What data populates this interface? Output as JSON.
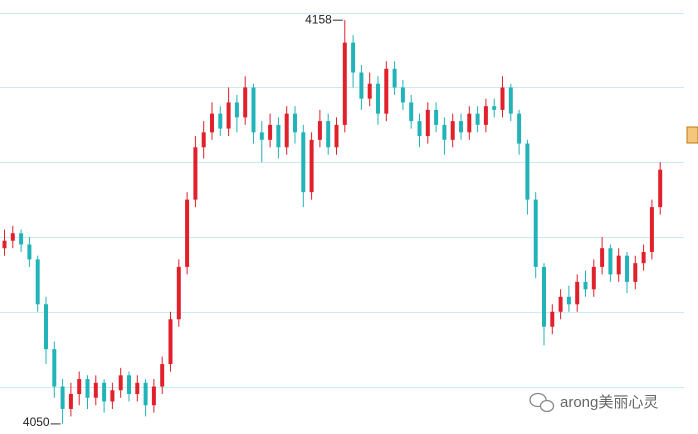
{
  "chart_data": {
    "type": "candlestick",
    "up_color": "#e0202a",
    "down_color": "#22b3b8",
    "ylim": [
      4047.3,
      4163.4
    ],
    "yticks": [
      4060,
      4080,
      4100,
      4120,
      4140,
      4160
    ],
    "grid": true,
    "open": [
      4097,
      4099,
      4101,
      4098,
      4094,
      4082,
      4070,
      4060,
      4054,
      4058,
      4062,
      4057,
      4061,
      4056,
      4059,
      4063,
      4058,
      4061,
      4055,
      4060,
      4066,
      4078,
      4092,
      4110,
      4124,
      4128,
      4133,
      4129,
      4136,
      4132,
      4140,
      4128,
      4126,
      4130,
      4124,
      4133,
      4128,
      4112,
      4126,
      4131,
      4124,
      4130,
      4152,
      4144,
      4137,
      4141,
      4133,
      4145,
      4140,
      4136,
      4131,
      4127,
      4134,
      4130,
      4126,
      4131,
      4128,
      4133,
      4130,
      4135,
      4134,
      4140,
      4133,
      4125,
      4110,
      4092,
      4076,
      4080,
      4084,
      4082,
      4088,
      4086,
      4092,
      4097,
      4090,
      4095,
      4088,
      4093,
      4096,
      4108
    ],
    "high": [
      4102,
      4103,
      4102,
      4100,
      4095,
      4084,
      4072,
      4062,
      4061,
      4064,
      4063,
      4063,
      4062,
      4061,
      4065,
      4064,
      4063,
      4062,
      4062,
      4068,
      4080,
      4094,
      4112,
      4127,
      4131,
      4136,
      4135,
      4140,
      4138,
      4143,
      4141,
      4131,
      4133,
      4132,
      4135,
      4135,
      4130,
      4128,
      4134,
      4133,
      4132,
      4158,
      4154,
      4146,
      4144,
      4143,
      4147,
      4147,
      4142,
      4138,
      4133,
      4136,
      4136,
      4132,
      4133,
      4133,
      4135,
      4135,
      4137,
      4137,
      4143,
      4141,
      4134,
      4126,
      4112,
      4093,
      4082,
      4086,
      4087,
      4090,
      4091,
      4094,
      4100,
      4098,
      4097,
      4096,
      4095,
      4098,
      4110,
      4120
    ],
    "low": [
      4095,
      4097,
      4096,
      4092,
      4080,
      4066,
      4057,
      4050,
      4052,
      4055,
      4054,
      4055,
      4053,
      4054,
      4057,
      4056,
      4056,
      4052,
      4053,
      4058,
      4064,
      4076,
      4090,
      4108,
      4121,
      4126,
      4127,
      4127,
      4128,
      4130,
      4125,
      4120,
      4124,
      4121,
      4122,
      4125,
      4108,
      4110,
      4124,
      4122,
      4122,
      4128,
      4140,
      4134,
      4135,
      4130,
      4131,
      4138,
      4134,
      4129,
      4124,
      4125,
      4128,
      4122,
      4124,
      4126,
      4126,
      4128,
      4128,
      4132,
      4132,
      4131,
      4122,
      4106,
      4089,
      4071,
      4074,
      4078,
      4080,
      4080,
      4084,
      4084,
      4090,
      4088,
      4088,
      4085,
      4086,
      4091,
      4094,
      4106
    ],
    "close": [
      4099,
      4101,
      4098,
      4094,
      4082,
      4070,
      4060,
      4054,
      4058,
      4062,
      4057,
      4061,
      4056,
      4059,
      4063,
      4058,
      4061,
      4055,
      4060,
      4066,
      4078,
      4092,
      4110,
      4124,
      4128,
      4133,
      4129,
      4136,
      4132,
      4140,
      4128,
      4126,
      4130,
      4124,
      4133,
      4128,
      4112,
      4126,
      4131,
      4124,
      4130,
      4152,
      4144,
      4137,
      4141,
      4133,
      4145,
      4140,
      4136,
      4131,
      4127,
      4134,
      4130,
      4126,
      4131,
      4128,
      4133,
      4130,
      4135,
      4134,
      4140,
      4133,
      4125,
      4110,
      4092,
      4076,
      4080,
      4084,
      4082,
      4088,
      4086,
      4092,
      4097,
      4090,
      4095,
      4088,
      4093,
      4096,
      4108,
      4118
    ],
    "watermark": "arong美丽心灵"
  }
}
